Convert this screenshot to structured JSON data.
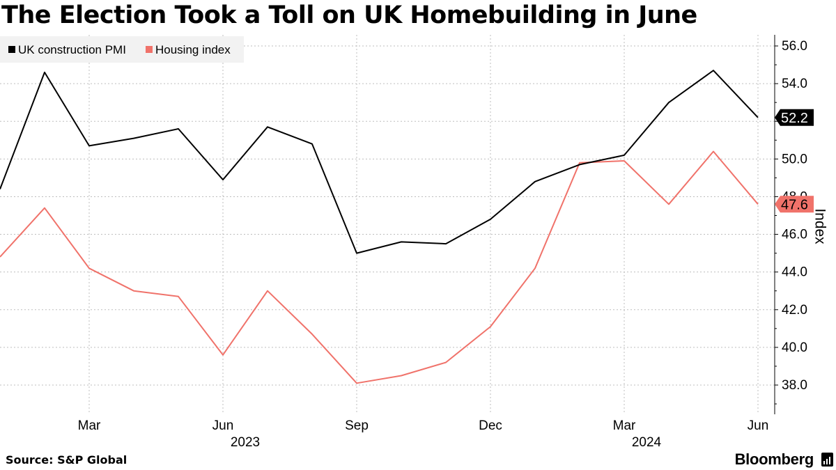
{
  "chart_data": {
    "type": "line",
    "title": "The Election Took a Toll on UK Homebuilding in June",
    "ylabel": "Index",
    "ylim": [
      36.5,
      56.8
    ],
    "yticks": [
      38.0,
      40.0,
      42.0,
      44.0,
      46.0,
      48.0,
      50.0,
      52.0,
      54.0,
      56.0
    ],
    "ytick_labels": [
      "38.0",
      "40.0",
      "42.0",
      "44.0",
      "46.0",
      "48.0",
      "50.0",
      "52.0",
      "54.0",
      "56.0"
    ],
    "x": [
      "Jan 2023",
      "Feb 2023",
      "Mar 2023",
      "Apr 2023",
      "May 2023",
      "Jun 2023",
      "Jul 2023",
      "Aug 2023",
      "Sep 2023",
      "Oct 2023",
      "Nov 2023",
      "Dec 2023",
      "Jan 2024",
      "Feb 2024",
      "Mar 2024",
      "Apr 2024",
      "May 2024",
      "Jun 2024"
    ],
    "xticks": [
      {
        "index": 2,
        "label": "Mar"
      },
      {
        "index": 5,
        "label": "Jun",
        "sublabel": "2023"
      },
      {
        "index": 8,
        "label": "Sep"
      },
      {
        "index": 11,
        "label": "Dec"
      },
      {
        "index": 14,
        "label": "Mar",
        "sublabel": "2024"
      },
      {
        "index": 17,
        "label": "Jun"
      }
    ],
    "series": [
      {
        "name": "UK construction PMI",
        "color": "#000000",
        "values": [
          48.4,
          54.6,
          50.7,
          51.1,
          51.6,
          48.9,
          51.7,
          50.8,
          45.0,
          45.6,
          45.5,
          46.8,
          48.8,
          49.7,
          50.2,
          53.0,
          54.7,
          52.2
        ]
      },
      {
        "name": "Housing index",
        "color": "#f0726a",
        "values": [
          44.8,
          47.4,
          44.2,
          43.0,
          42.7,
          39.6,
          43.0,
          40.7,
          38.1,
          38.5,
          39.2,
          41.1,
          44.2,
          49.8,
          49.9,
          47.6,
          50.4,
          47.6
        ]
      }
    ],
    "end_labels": [
      "52.2",
      "47.6"
    ],
    "legend_position": "top-left"
  },
  "footer": {
    "source": "Source: S&P Global",
    "brand": "Bloomberg"
  },
  "icons": {
    "brand_icon": "bloomberg-terminal-icon"
  }
}
